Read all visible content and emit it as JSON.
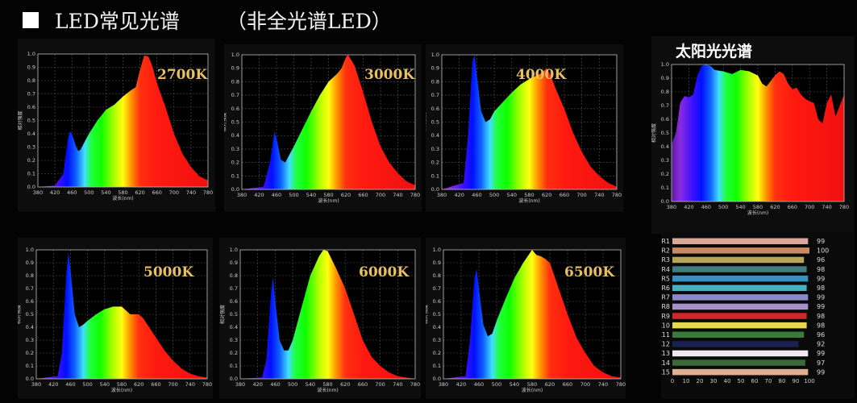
{
  "header": {
    "title": "LED常见光谱",
    "subtitle": "（非全光谱LED）"
  },
  "chart_data": [
    {
      "type": "area",
      "annotation": "2700K",
      "xlabel": "波长(nm)",
      "ylabel": "相对强度",
      "xlim": [
        380,
        780
      ],
      "ylim": [
        0,
        1.0
      ],
      "grid": true,
      "x_ticks": [
        380,
        420,
        460,
        500,
        540,
        580,
        620,
        660,
        700,
        740,
        780
      ],
      "y_ticks": [
        0.0,
        0.1,
        0.2,
        0.3,
        0.4,
        0.5,
        0.6,
        0.7,
        0.8,
        0.9,
        1.0
      ],
      "points": [
        [
          380,
          0
        ],
        [
          420,
          0.01
        ],
        [
          440,
          0.1
        ],
        [
          450,
          0.35
        ],
        [
          455,
          0.42
        ],
        [
          460,
          0.4
        ],
        [
          470,
          0.3
        ],
        [
          475,
          0.27
        ],
        [
          480,
          0.28
        ],
        [
          500,
          0.4
        ],
        [
          520,
          0.5
        ],
        [
          540,
          0.58
        ],
        [
          560,
          0.62
        ],
        [
          580,
          0.68
        ],
        [
          600,
          0.73
        ],
        [
          610,
          0.75
        ],
        [
          620,
          0.88
        ],
        [
          630,
          0.99
        ],
        [
          640,
          0.98
        ],
        [
          650,
          0.9
        ],
        [
          660,
          0.78
        ],
        [
          680,
          0.6
        ],
        [
          700,
          0.4
        ],
        [
          720,
          0.25
        ],
        [
          740,
          0.15
        ],
        [
          760,
          0.08
        ],
        [
          780,
          0.05
        ]
      ]
    },
    {
      "type": "area",
      "annotation": "3000K",
      "xlabel": "波长(nm)",
      "ylabel": "相对强度",
      "xlim": [
        380,
        780
      ],
      "ylim": [
        0,
        1.0
      ],
      "grid": true,
      "x_ticks": [
        380,
        420,
        460,
        500,
        540,
        580,
        620,
        660,
        700,
        740,
        780
      ],
      "y_ticks": [
        0.0,
        0.1,
        0.2,
        0.3,
        0.4,
        0.5,
        0.6,
        0.7,
        0.8,
        0.9,
        1.0
      ],
      "points": [
        [
          380,
          0
        ],
        [
          430,
          0.02
        ],
        [
          445,
          0.2
        ],
        [
          455,
          0.43
        ],
        [
          460,
          0.38
        ],
        [
          470,
          0.22
        ],
        [
          480,
          0.2
        ],
        [
          500,
          0.32
        ],
        [
          520,
          0.45
        ],
        [
          540,
          0.58
        ],
        [
          560,
          0.7
        ],
        [
          580,
          0.8
        ],
        [
          600,
          0.86
        ],
        [
          610,
          0.9
        ],
        [
          620,
          0.98
        ],
        [
          625,
          1.0
        ],
        [
          640,
          0.92
        ],
        [
          660,
          0.72
        ],
        [
          680,
          0.5
        ],
        [
          700,
          0.32
        ],
        [
          720,
          0.2
        ],
        [
          740,
          0.12
        ],
        [
          760,
          0.06
        ],
        [
          780,
          0.03
        ]
      ]
    },
    {
      "type": "area",
      "annotation": "4000K",
      "xlabel": "波长(nm)",
      "ylabel": "相对强度",
      "xlim": [
        380,
        780
      ],
      "ylim": [
        0,
        1.0
      ],
      "grid": true,
      "x_ticks": [
        380,
        420,
        460,
        500,
        540,
        580,
        620,
        660,
        700,
        740,
        780
      ],
      "y_ticks": [
        0.0,
        0.1,
        0.2,
        0.3,
        0.4,
        0.5,
        0.6,
        0.7,
        0.8,
        0.9,
        1.0
      ],
      "points": [
        [
          380,
          0
        ],
        [
          430,
          0.05
        ],
        [
          440,
          0.4
        ],
        [
          450,
          0.95
        ],
        [
          455,
          1.0
        ],
        [
          460,
          0.85
        ],
        [
          470,
          0.58
        ],
        [
          480,
          0.5
        ],
        [
          490,
          0.52
        ],
        [
          500,
          0.58
        ],
        [
          520,
          0.65
        ],
        [
          540,
          0.72
        ],
        [
          560,
          0.78
        ],
        [
          580,
          0.82
        ],
        [
          600,
          0.85
        ],
        [
          610,
          0.87
        ],
        [
          620,
          0.9
        ],
        [
          630,
          0.84
        ],
        [
          640,
          0.75
        ],
        [
          660,
          0.6
        ],
        [
          680,
          0.42
        ],
        [
          700,
          0.28
        ],
        [
          720,
          0.17
        ],
        [
          740,
          0.1
        ],
        [
          760,
          0.05
        ],
        [
          780,
          0.02
        ]
      ]
    },
    {
      "type": "area",
      "title": "太阳光光谱",
      "xlabel": "波长(nm)",
      "ylabel": "相对强度",
      "xlim": [
        380,
        780
      ],
      "ylim": [
        0,
        1.0
      ],
      "grid": true,
      "x_ticks": [
        380,
        420,
        460,
        500,
        540,
        580,
        620,
        660,
        700,
        740,
        780
      ],
      "y_ticks": [
        0.0,
        0.1,
        0.2,
        0.3,
        0.4,
        0.5,
        0.6,
        0.7,
        0.8,
        0.9,
        1.0
      ],
      "points": [
        [
          380,
          0.42
        ],
        [
          390,
          0.5
        ],
        [
          400,
          0.72
        ],
        [
          410,
          0.77
        ],
        [
          420,
          0.76
        ],
        [
          430,
          0.78
        ],
        [
          440,
          0.92
        ],
        [
          450,
          0.99
        ],
        [
          460,
          1.0
        ],
        [
          470,
          0.99
        ],
        [
          480,
          0.96
        ],
        [
          500,
          0.95
        ],
        [
          520,
          0.93
        ],
        [
          540,
          0.96
        ],
        [
          560,
          0.95
        ],
        [
          580,
          0.92
        ],
        [
          590,
          0.86
        ],
        [
          600,
          0.84
        ],
        [
          620,
          0.92
        ],
        [
          630,
          0.95
        ],
        [
          640,
          0.93
        ],
        [
          650,
          0.86
        ],
        [
          660,
          0.82
        ],
        [
          670,
          0.83
        ],
        [
          680,
          0.78
        ],
        [
          690,
          0.75
        ],
        [
          700,
          0.73
        ],
        [
          710,
          0.72
        ],
        [
          720,
          0.6
        ],
        [
          730,
          0.57
        ],
        [
          740,
          0.72
        ],
        [
          750,
          0.78
        ],
        [
          760,
          0.62
        ],
        [
          770,
          0.7
        ],
        [
          780,
          0.78
        ]
      ]
    },
    {
      "type": "area",
      "annotation": "5000K",
      "xlabel": "波长(nm)",
      "ylabel": "相对强度",
      "xlim": [
        380,
        780
      ],
      "ylim": [
        0,
        1.0
      ],
      "grid": true,
      "x_ticks": [
        380,
        420,
        460,
        500,
        540,
        580,
        620,
        660,
        700,
        740,
        780
      ],
      "y_ticks": [
        0.0,
        0.1,
        0.2,
        0.3,
        0.4,
        0.5,
        0.6,
        0.7,
        0.8,
        0.9,
        1.0
      ],
      "points": [
        [
          380,
          0
        ],
        [
          430,
          0.02
        ],
        [
          440,
          0.2
        ],
        [
          450,
          0.8
        ],
        [
          455,
          0.98
        ],
        [
          460,
          0.85
        ],
        [
          470,
          0.5
        ],
        [
          480,
          0.4
        ],
        [
          490,
          0.42
        ],
        [
          500,
          0.45
        ],
        [
          520,
          0.5
        ],
        [
          540,
          0.54
        ],
        [
          560,
          0.56
        ],
        [
          580,
          0.56
        ],
        [
          600,
          0.5
        ],
        [
          620,
          0.5
        ],
        [
          630,
          0.47
        ],
        [
          640,
          0.42
        ],
        [
          660,
          0.32
        ],
        [
          680,
          0.22
        ],
        [
          700,
          0.14
        ],
        [
          720,
          0.08
        ],
        [
          740,
          0.04
        ],
        [
          760,
          0.02
        ],
        [
          780,
          0.01
        ]
      ]
    },
    {
      "type": "area",
      "annotation": "6000K",
      "xlabel": "波长(nm)",
      "ylabel": "相对强度",
      "xlim": [
        380,
        780
      ],
      "ylim": [
        0,
        1.0
      ],
      "grid": true,
      "x_ticks": [
        380,
        420,
        460,
        500,
        540,
        580,
        620,
        660,
        700,
        740,
        780
      ],
      "y_ticks": [
        0.0,
        0.1,
        0.2,
        0.3,
        0.4,
        0.5,
        0.6,
        0.7,
        0.8,
        0.9,
        1.0
      ],
      "points": [
        [
          380,
          0
        ],
        [
          430,
          0.01
        ],
        [
          440,
          0.15
        ],
        [
          450,
          0.65
        ],
        [
          455,
          0.79
        ],
        [
          460,
          0.6
        ],
        [
          470,
          0.3
        ],
        [
          480,
          0.22
        ],
        [
          490,
          0.22
        ],
        [
          500,
          0.3
        ],
        [
          520,
          0.55
        ],
        [
          540,
          0.8
        ],
        [
          560,
          0.95
        ],
        [
          570,
          1.0
        ],
        [
          580,
          0.99
        ],
        [
          600,
          0.85
        ],
        [
          620,
          0.7
        ],
        [
          640,
          0.5
        ],
        [
          660,
          0.3
        ],
        [
          680,
          0.17
        ],
        [
          700,
          0.1
        ],
        [
          720,
          0.05
        ],
        [
          740,
          0.02
        ],
        [
          780,
          0
        ]
      ]
    },
    {
      "type": "area",
      "annotation": "6500K",
      "xlabel": "波长(nm)",
      "ylabel": "相对强度",
      "xlim": [
        380,
        780
      ],
      "ylim": [
        0,
        1.0
      ],
      "grid": true,
      "x_ticks": [
        380,
        420,
        460,
        500,
        540,
        580,
        620,
        660,
        700,
        740,
        780
      ],
      "y_ticks": [
        0.0,
        0.1,
        0.2,
        0.3,
        0.4,
        0.5,
        0.6,
        0.7,
        0.8,
        0.9,
        1.0
      ],
      "points": [
        [
          380,
          0
        ],
        [
          430,
          0.02
        ],
        [
          440,
          0.3
        ],
        [
          450,
          0.78
        ],
        [
          455,
          0.85
        ],
        [
          460,
          0.7
        ],
        [
          470,
          0.42
        ],
        [
          480,
          0.33
        ],
        [
          490,
          0.35
        ],
        [
          500,
          0.45
        ],
        [
          520,
          0.62
        ],
        [
          540,
          0.78
        ],
        [
          560,
          0.9
        ],
        [
          570,
          0.95
        ],
        [
          580,
          1.0
        ],
        [
          590,
          0.96
        ],
        [
          600,
          0.95
        ],
        [
          610,
          0.93
        ],
        [
          620,
          0.9
        ],
        [
          640,
          0.7
        ],
        [
          660,
          0.5
        ],
        [
          680,
          0.32
        ],
        [
          700,
          0.2
        ],
        [
          720,
          0.1
        ],
        [
          740,
          0.05
        ],
        [
          760,
          0.02
        ],
        [
          780,
          0.01
        ]
      ]
    },
    {
      "type": "bar",
      "orientation": "horizontal",
      "xlim": [
        0,
        100
      ],
      "x_ticks": [
        0,
        10,
        20,
        30,
        40,
        50,
        60,
        70,
        80,
        90,
        100
      ],
      "categories": [
        "R1",
        "R2",
        "R3",
        "R4",
        "R5",
        "R6",
        "R7",
        "R8",
        "R9",
        "R10",
        "R11",
        "R12",
        "R13",
        "R14",
        "R15"
      ],
      "values": [
        99,
        100,
        96,
        98,
        99,
        98,
        99,
        99,
        98,
        98,
        96,
        92,
        99,
        97,
        99
      ],
      "colors": [
        "#d8a89a",
        "#c88a5e",
        "#b6a65a",
        "#3d7f7f",
        "#3a8fc0",
        "#4ab0c0",
        "#8a88c8",
        "#a890c8",
        "#d02828",
        "#e8d850",
        "#3a7a3a",
        "#1a2050",
        "#f0e8f0",
        "#3a6a3a",
        "#e0b090"
      ]
    }
  ]
}
